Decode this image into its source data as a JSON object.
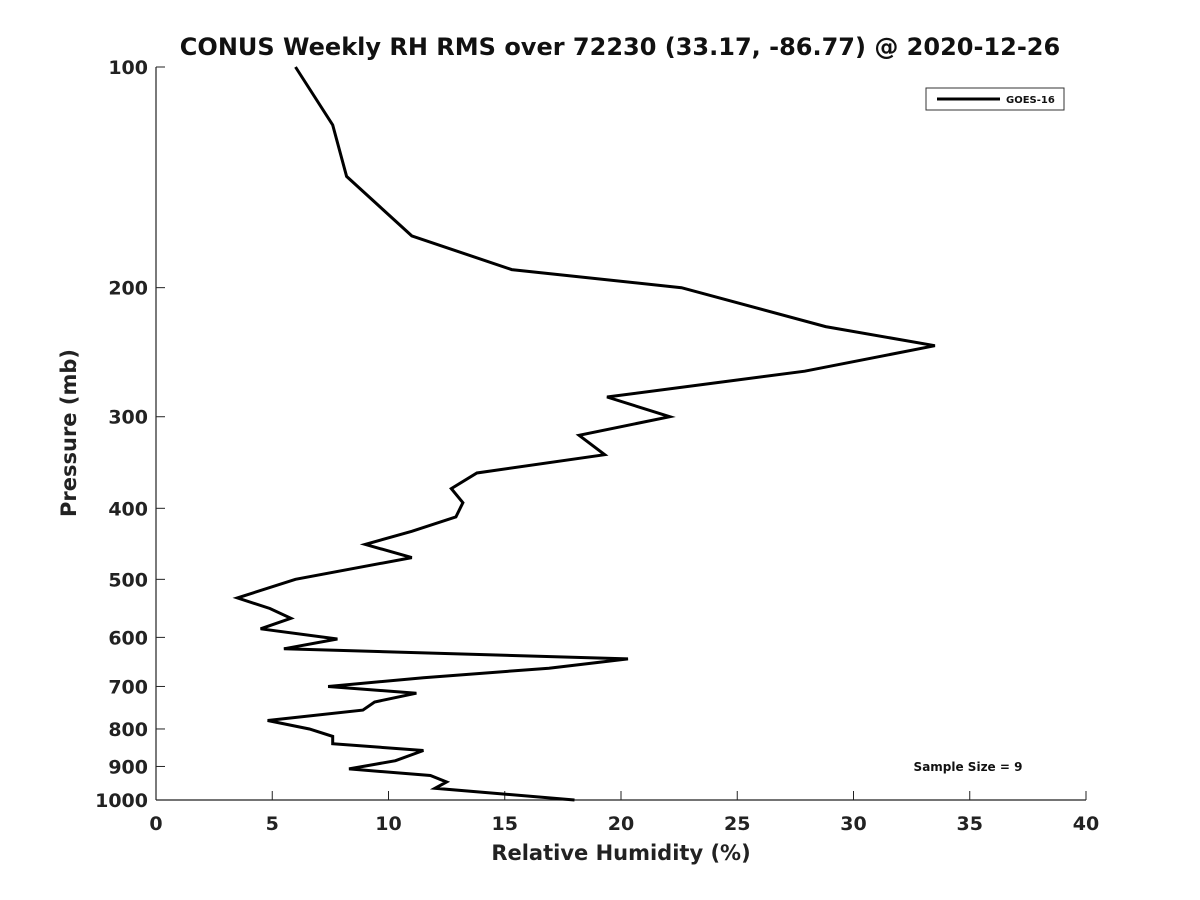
{
  "chart_data": {
    "type": "line",
    "title": "CONUS Weekly RH RMS over 72230 (33.17, -86.77) @ 2020-12-26",
    "xlabel": "Relative Humidity (%)",
    "ylabel": "Pressure (mb)",
    "xlim": [
      0,
      40
    ],
    "ylim": [
      100,
      1000
    ],
    "yscale": "log",
    "y_reversed": true,
    "xticks": [
      0,
      5,
      10,
      15,
      20,
      25,
      30,
      35,
      40
    ],
    "yticks": [
      100,
      200,
      300,
      400,
      500,
      600,
      700,
      800,
      900,
      1000
    ],
    "legend_position": "top-right",
    "series": [
      {
        "name": "GOES-16",
        "color": "#000000",
        "points": [
          [
            6.0,
            100
          ],
          [
            7.6,
            120
          ],
          [
            8.2,
            141
          ],
          [
            11.0,
            170
          ],
          [
            15.3,
            189
          ],
          [
            22.6,
            200
          ],
          [
            28.8,
            226
          ],
          [
            33.5,
            240
          ],
          [
            27.9,
            260
          ],
          [
            19.4,
            282
          ],
          [
            22.1,
            300
          ],
          [
            18.2,
            318
          ],
          [
            19.3,
            338
          ],
          [
            13.8,
            358
          ],
          [
            12.7,
            376
          ],
          [
            13.2,
            393
          ],
          [
            12.9,
            411
          ],
          [
            11.0,
            430
          ],
          [
            9.0,
            448
          ],
          [
            11.0,
            467
          ],
          [
            6.0,
            500
          ],
          [
            3.5,
            530
          ],
          [
            4.9,
            548
          ],
          [
            5.8,
            565
          ],
          [
            4.5,
            584
          ],
          [
            7.8,
            603
          ],
          [
            5.5,
            622
          ],
          [
            20.3,
            642
          ],
          [
            16.9,
            661
          ],
          [
            11.5,
            681
          ],
          [
            7.4,
            700
          ],
          [
            11.2,
            715
          ],
          [
            9.4,
            735
          ],
          [
            8.9,
            754
          ],
          [
            4.8,
            779
          ],
          [
            6.6,
            800
          ],
          [
            7.6,
            819
          ],
          [
            7.6,
            838
          ],
          [
            11.5,
            856
          ],
          [
            10.3,
            884
          ],
          [
            8.3,
            907
          ],
          [
            11.8,
            926
          ],
          [
            12.5,
            945
          ],
          [
            12.0,
            964
          ],
          [
            18.0,
            1000
          ]
        ]
      }
    ],
    "annotations": [
      "Sample Size = 9"
    ]
  }
}
